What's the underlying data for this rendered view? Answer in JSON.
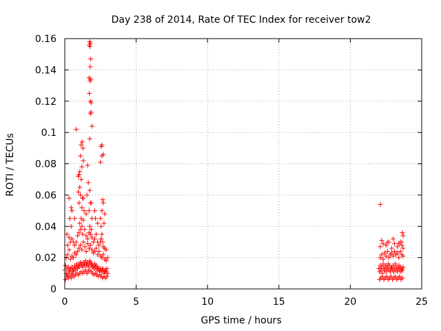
{
  "chart_data": {
    "type": "scatter",
    "title": "Day 238 of 2014, Rate Of TEC Index for receiver tow2",
    "xlabel": "GPS time / hours",
    "ylabel": "ROTI / TECUs",
    "xlim": [
      0,
      25
    ],
    "ylim": [
      0,
      0.16
    ],
    "xticks": [
      0,
      5,
      10,
      15,
      20,
      25
    ],
    "xtick_labels": [
      "0",
      "5",
      "10",
      "15",
      "20",
      "25"
    ],
    "yticks": [
      0,
      0.02,
      0.04,
      0.06,
      0.08,
      0.1,
      0.12,
      0.14,
      0.16
    ],
    "ytick_labels": [
      "0",
      "0.02",
      "0.04",
      "0.06",
      "0.08",
      "0.1",
      "0.12",
      "0.14",
      "0.16"
    ],
    "grid": true,
    "marker": "plus",
    "color": "#ff0000",
    "series": [
      {
        "x": [
          0.0,
          0.05,
          0.1,
          0.15,
          0.2,
          0.25,
          0.3,
          0.35,
          0.4,
          0.45,
          0.5,
          0.55,
          0.6,
          0.65,
          0.7,
          0.75,
          0.8,
          0.85,
          0.9,
          0.95,
          1.0,
          1.05,
          1.1,
          1.15,
          1.2,
          1.25,
          1.3,
          1.35,
          1.4,
          1.45,
          1.5,
          1.55,
          1.6,
          1.65,
          1.7,
          1.75,
          1.8,
          1.85,
          1.9,
          1.95,
          2.0,
          2.05,
          2.1,
          2.15,
          2.2,
          2.25,
          2.3,
          2.35,
          2.4,
          2.45,
          2.5,
          2.55,
          2.6,
          2.65,
          2.7,
          2.75,
          2.8,
          2.85,
          2.9,
          2.95,
          3.0,
          0.05,
          0.15,
          0.25,
          0.35,
          0.45,
          0.55,
          0.65,
          0.75,
          0.85,
          0.95,
          1.05,
          1.15,
          1.25,
          1.35,
          1.45,
          1.55,
          1.65,
          1.75,
          1.85,
          1.95,
          2.05,
          2.15,
          2.25,
          2.35,
          2.45,
          2.55,
          2.65,
          2.75,
          2.85,
          2.95,
          0.1,
          0.2,
          0.3,
          0.4,
          0.5,
          0.6,
          0.7,
          0.8,
          0.9,
          1.0,
          1.1,
          1.2,
          1.3,
          1.4,
          1.5,
          1.6,
          1.7,
          1.8,
          1.9,
          2.0,
          2.1,
          2.2,
          2.3,
          2.4,
          2.5,
          2.6,
          2.7,
          2.8,
          2.9,
          3.0,
          0.2,
          0.3,
          0.4,
          0.45,
          0.5,
          0.6,
          0.7,
          0.8,
          0.9,
          1.0,
          1.05,
          1.1,
          1.15,
          1.2,
          1.25,
          1.3,
          1.4,
          1.5,
          1.6,
          1.7,
          1.75,
          1.8,
          1.85,
          1.9,
          2.0,
          2.1,
          2.2,
          2.3,
          2.4,
          2.5,
          2.55,
          2.6,
          2.65,
          2.7,
          2.8,
          2.9,
          0.3,
          0.5,
          0.7,
          1.0,
          1.1,
          1.2,
          1.3,
          1.5,
          1.7,
          1.8,
          1.9,
          2.1,
          2.3,
          2.5,
          2.6,
          2.7,
          2.8,
          0.15,
          0.35,
          0.45,
          0.95,
          1.05,
          1.15,
          1.25,
          1.35,
          1.55,
          1.65,
          1.75,
          1.85,
          2.15,
          2.55,
          2.65,
          2.75,
          1.0,
          1.1,
          1.2,
          1.3,
          1.6,
          1.75,
          1.8,
          1.85,
          1.9,
          2.5,
          2.6,
          2.7,
          0.8,
          0.95,
          1.05,
          1.15,
          1.22,
          1.28,
          1.7,
          1.72,
          1.78,
          1.82,
          2.55,
          2.6,
          1.72,
          1.75,
          1.76,
          1.8,
          1.82,
          1.84,
          1.77,
          1.79,
          22.0,
          22.05,
          22.1,
          22.15,
          22.2,
          22.25,
          22.3,
          22.35,
          22.4,
          22.45,
          22.5,
          22.55,
          22.6,
          22.65,
          22.7,
          22.75,
          22.8,
          22.85,
          22.9,
          22.95,
          23.0,
          23.05,
          23.1,
          23.15,
          23.2,
          23.25,
          23.3,
          23.35,
          23.4,
          23.45,
          23.5,
          23.55,
          23.6,
          23.65,
          23.7,
          22.05,
          22.15,
          22.25,
          22.35,
          22.45,
          22.55,
          22.65,
          22.75,
          22.85,
          22.95,
          23.05,
          23.15,
          23.25,
          23.35,
          23.45,
          23.55,
          23.65,
          22.1,
          22.2,
          22.3,
          22.4,
          22.5,
          22.6,
          22.7,
          22.8,
          22.9,
          23.0,
          23.1,
          23.2,
          23.3,
          23.4,
          23.5,
          23.6,
          23.7,
          22.1,
          22.3,
          22.5,
          22.7,
          22.9,
          23.1,
          23.3,
          23.5,
          23.6,
          23.7,
          22.2,
          22.6,
          23.0,
          23.4,
          23.6,
          23.65,
          23.7,
          22.1
        ],
        "y": [
          0.012,
          0.015,
          0.01,
          0.013,
          0.009,
          0.014,
          0.011,
          0.012,
          0.013,
          0.01,
          0.014,
          0.012,
          0.011,
          0.013,
          0.015,
          0.012,
          0.014,
          0.016,
          0.013,
          0.015,
          0.014,
          0.016,
          0.017,
          0.015,
          0.016,
          0.014,
          0.017,
          0.015,
          0.016,
          0.018,
          0.015,
          0.016,
          0.017,
          0.014,
          0.016,
          0.018,
          0.017,
          0.015,
          0.016,
          0.014,
          0.015,
          0.013,
          0.016,
          0.014,
          0.015,
          0.012,
          0.014,
          0.013,
          0.012,
          0.011,
          0.013,
          0.012,
          0.011,
          0.013,
          0.012,
          0.01,
          0.011,
          0.012,
          0.011,
          0.013,
          0.01,
          0.006,
          0.008,
          0.007,
          0.008,
          0.007,
          0.009,
          0.008,
          0.009,
          0.01,
          0.009,
          0.01,
          0.011,
          0.01,
          0.011,
          0.012,
          0.01,
          0.011,
          0.012,
          0.011,
          0.01,
          0.009,
          0.01,
          0.009,
          0.008,
          0.009,
          0.008,
          0.007,
          0.008,
          0.007,
          0.008,
          0.02,
          0.022,
          0.025,
          0.019,
          0.021,
          0.02,
          0.023,
          0.022,
          0.024,
          0.026,
          0.028,
          0.025,
          0.03,
          0.027,
          0.024,
          0.029,
          0.026,
          0.028,
          0.025,
          0.023,
          0.024,
          0.026,
          0.022,
          0.024,
          0.021,
          0.02,
          0.022,
          0.019,
          0.018,
          0.02,
          0.028,
          0.033,
          0.03,
          0.04,
          0.032,
          0.03,
          0.028,
          0.03,
          0.034,
          0.036,
          0.042,
          0.038,
          0.045,
          0.04,
          0.035,
          0.044,
          0.038,
          0.034,
          0.032,
          0.036,
          0.04,
          0.035,
          0.038,
          0.033,
          0.03,
          0.032,
          0.035,
          0.03,
          0.028,
          0.03,
          0.032,
          0.035,
          0.03,
          0.027,
          0.026,
          0.025,
          0.058,
          0.05,
          0.045,
          0.055,
          0.06,
          0.052,
          0.058,
          0.048,
          0.05,
          0.055,
          0.045,
          0.05,
          0.042,
          0.045,
          0.05,
          0.055,
          0.048,
          0.035,
          0.045,
          0.052,
          0.062,
          0.065,
          0.07,
          0.058,
          0.05,
          0.06,
          0.068,
          0.063,
          0.055,
          0.045,
          0.04,
          0.057,
          0.042,
          0.073,
          0.085,
          0.078,
          0.082,
          0.079,
          0.096,
          0.112,
          0.119,
          0.104,
          0.081,
          0.085,
          0.086,
          0.102,
          0.072,
          0.075,
          0.092,
          0.094,
          0.09,
          0.135,
          0.125,
          0.142,
          0.147,
          0.091,
          0.092,
          0.156,
          0.158,
          0.155,
          0.157,
          0.134,
          0.113,
          0.133,
          0.12,
          0.013,
          0.011,
          0.015,
          0.012,
          0.014,
          0.01,
          0.016,
          0.013,
          0.012,
          0.015,
          0.011,
          0.014,
          0.013,
          0.016,
          0.012,
          0.015,
          0.011,
          0.013,
          0.014,
          0.012,
          0.015,
          0.011,
          0.013,
          0.016,
          0.012,
          0.014,
          0.011,
          0.013,
          0.015,
          0.012,
          0.014,
          0.011,
          0.013,
          0.012,
          0.014,
          0.006,
          0.007,
          0.008,
          0.006,
          0.007,
          0.008,
          0.006,
          0.007,
          0.008,
          0.006,
          0.007,
          0.008,
          0.006,
          0.007,
          0.008,
          0.006,
          0.007,
          0.02,
          0.022,
          0.019,
          0.023,
          0.021,
          0.024,
          0.02,
          0.022,
          0.023,
          0.021,
          0.024,
          0.022,
          0.023,
          0.02,
          0.024,
          0.022,
          0.021,
          0.027,
          0.029,
          0.028,
          0.03,
          0.026,
          0.029,
          0.027,
          0.03,
          0.028,
          0.026,
          0.031,
          0.03,
          0.032,
          0.029,
          0.03,
          0.036,
          0.034,
          0.054
        ]
      }
    ]
  }
}
